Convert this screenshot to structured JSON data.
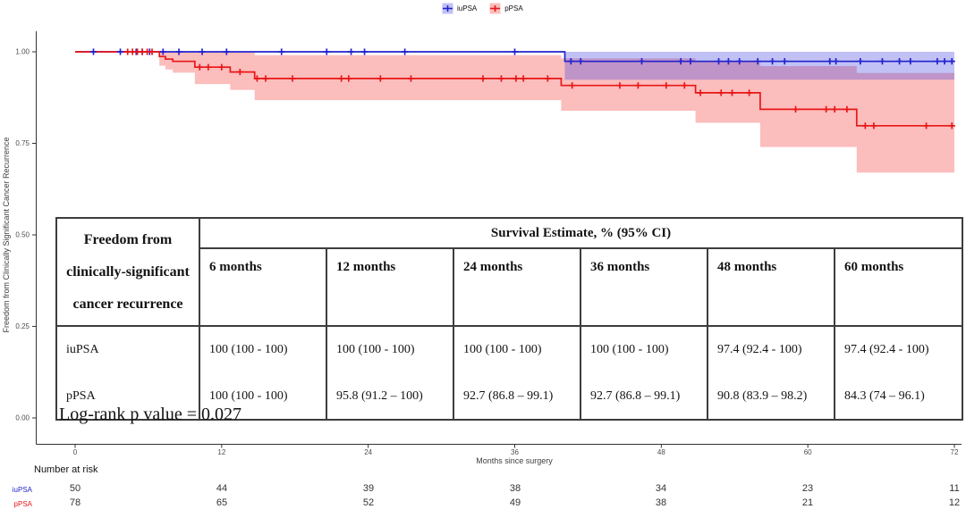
{
  "legend": {
    "items": [
      {
        "label": "iuPSA",
        "color": "#2323cd",
        "fill": "rgba(68,68,226,0.33)"
      },
      {
        "label": "pPSA",
        "color": "#e81717",
        "fill": "rgba(247,82,82,0.38)"
      }
    ]
  },
  "chart_data": {
    "type": "line",
    "subtype": "kaplan-meier",
    "title": "",
    "xlabel": "Months since surgery",
    "ylabel": "Freedom from Clinically Significant Cancer Recurrence",
    "xlim": [
      0,
      72
    ],
    "ylim": [
      0,
      1
    ],
    "grid": false,
    "legend_position": "top-center",
    "x_ticks": [
      {
        "label": "0",
        "v": 0
      },
      {
        "label": "12",
        "v": 12
      },
      {
        "label": "24",
        "v": 24
      },
      {
        "label": "36",
        "v": 36
      },
      {
        "label": "48",
        "v": 48
      },
      {
        "label": "60",
        "v": 60
      },
      {
        "label": "72",
        "v": 72
      }
    ],
    "y_ticks": [
      {
        "label": "1.00",
        "v": 1.0
      },
      {
        "label": "0.75",
        "v": 0.75
      },
      {
        "label": "0.50",
        "v": 0.5
      },
      {
        "label": "0.25",
        "v": 0.25
      },
      {
        "label": "0.00",
        "v": 0.0
      }
    ],
    "series": [
      {
        "name": "iuPSA",
        "color": "#2323cd",
        "fill": "rgba(68,68,226,0.33)",
        "steps": [
          [
            0,
            1.0
          ],
          [
            40.1,
            0.974
          ]
        ],
        "ci_steps": [
          [
            40.1,
            0.924,
            1.0
          ]
        ],
        "censors": [
          [
            1.5,
            1
          ],
          [
            3.7,
            1
          ],
          [
            5.0,
            1
          ],
          [
            5.5,
            1
          ],
          [
            6.1,
            1
          ],
          [
            7.2,
            1
          ],
          [
            8.5,
            1
          ],
          [
            10.4,
            1
          ],
          [
            12.4,
            1
          ],
          [
            16.9,
            1
          ],
          [
            20.6,
            1
          ],
          [
            22.6,
            1
          ],
          [
            23.7,
            1
          ],
          [
            27.0,
            1
          ],
          [
            36.0,
            1
          ],
          [
            40.6,
            0.974
          ],
          [
            41.4,
            0.974
          ],
          [
            46.4,
            0.974
          ],
          [
            49.6,
            0.974
          ],
          [
            50.4,
            0.974
          ],
          [
            52.7,
            0.974
          ],
          [
            53.5,
            0.974
          ],
          [
            54.4,
            0.974
          ],
          [
            55.9,
            0.974
          ],
          [
            57.1,
            0.974
          ],
          [
            58.1,
            0.974
          ],
          [
            61.8,
            0.974
          ],
          [
            62.3,
            0.974
          ],
          [
            64.3,
            0.974
          ],
          [
            66.1,
            0.974
          ],
          [
            67.5,
            0.974
          ],
          [
            68.4,
            0.974
          ],
          [
            70.6,
            0.974
          ],
          [
            71.2,
            0.974
          ],
          [
            71.8,
            0.974
          ]
        ]
      },
      {
        "name": "pPSA",
        "color": "#e81717",
        "fill": "rgba(247,82,82,0.38)",
        "steps": [
          [
            0,
            1.0
          ],
          [
            6.9,
            0.987
          ],
          [
            7.4,
            0.98
          ],
          [
            8.0,
            0.974
          ],
          [
            9.8,
            0.958
          ],
          [
            12.7,
            0.945
          ],
          [
            14.7,
            0.927
          ],
          [
            39.8,
            0.908
          ],
          [
            50.8,
            0.888
          ],
          [
            56.1,
            0.843
          ],
          [
            64.0,
            0.798
          ]
        ],
        "ci_steps": [
          [
            6.9,
            0.962,
            1.0
          ],
          [
            7.4,
            0.952,
            1.0
          ],
          [
            8.0,
            0.943,
            1.0
          ],
          [
            9.8,
            0.912,
            1.0
          ],
          [
            12.7,
            0.896,
            0.998
          ],
          [
            14.7,
            0.868,
            0.991
          ],
          [
            39.8,
            0.839,
            0.982
          ],
          [
            50.8,
            0.806,
            0.972
          ],
          [
            56.1,
            0.74,
            0.961
          ],
          [
            64.0,
            0.67,
            0.942
          ]
        ],
        "censors": [
          [
            4.3,
            1
          ],
          [
            4.7,
            1
          ],
          [
            5.1,
            1
          ],
          [
            5.5,
            1
          ],
          [
            5.9,
            1
          ],
          [
            6.3,
            1
          ],
          [
            10.2,
            0.958
          ],
          [
            10.9,
            0.958
          ],
          [
            12.0,
            0.958
          ],
          [
            13.5,
            0.945
          ],
          [
            14.9,
            0.927
          ],
          [
            15.6,
            0.927
          ],
          [
            17.8,
            0.927
          ],
          [
            21.8,
            0.927
          ],
          [
            22.4,
            0.927
          ],
          [
            25.0,
            0.927
          ],
          [
            27.5,
            0.927
          ],
          [
            33.4,
            0.927
          ],
          [
            34.9,
            0.927
          ],
          [
            36.1,
            0.927
          ],
          [
            36.7,
            0.927
          ],
          [
            38.7,
            0.927
          ],
          [
            40.7,
            0.908
          ],
          [
            44.6,
            0.908
          ],
          [
            46.1,
            0.908
          ],
          [
            48.4,
            0.908
          ],
          [
            49.9,
            0.908
          ],
          [
            51.2,
            0.888
          ],
          [
            52.9,
            0.888
          ],
          [
            53.8,
            0.888
          ],
          [
            55.2,
            0.888
          ],
          [
            59.0,
            0.843
          ],
          [
            61.5,
            0.843
          ],
          [
            62.2,
            0.843
          ],
          [
            63.2,
            0.843
          ],
          [
            64.7,
            0.798
          ],
          [
            65.4,
            0.798
          ],
          [
            69.7,
            0.798
          ],
          [
            71.8,
            0.798
          ]
        ]
      }
    ]
  },
  "survival_table": {
    "row_header_lines": [
      "Freedom from",
      "clinically-significant",
      "cancer recurrence"
    ],
    "span_header": "Survival Estimate, % (95% CI)",
    "month_headers": [
      "6 months",
      "12 months",
      "24 months",
      "36 months",
      "48 months",
      "60 months"
    ],
    "rows": [
      {
        "label": "iuPSA",
        "values": [
          "100 (100 - 100)",
          "100 (100 - 100)",
          "100 (100 - 100)",
          "100 (100 - 100)",
          "97.4 (92.4 - 100)",
          "97.4 (92.4 - 100)"
        ]
      },
      {
        "label": "pPSA",
        "values": [
          "100 (100 - 100)",
          "95.8 (91.2 – 100)",
          "92.7 (86.8 – 99.1)",
          "92.7 (86.8 – 99.1)",
          "90.8 (83.9 – 98.2)",
          "84.3 (74 – 96.1)"
        ]
      }
    ]
  },
  "annotations": {
    "log_rank": "Log-rank p value = 0.027"
  },
  "risk_table": {
    "title": "Number at risk",
    "tick_months": [
      0,
      12,
      24,
      36,
      48,
      60,
      72
    ],
    "rows": [
      {
        "label": "iuPSA",
        "color": "#2323cd",
        "values": [
          "50",
          "44",
          "39",
          "38",
          "34",
          "23",
          "11"
        ]
      },
      {
        "label": "pPSA",
        "color": "#e81717",
        "values": [
          "78",
          "65",
          "52",
          "49",
          "38",
          "21",
          "12"
        ]
      }
    ]
  }
}
